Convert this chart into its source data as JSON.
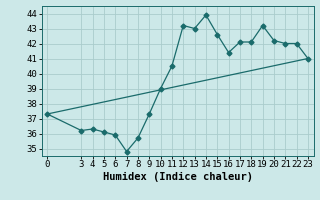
{
  "title": "",
  "xlabel": "Humidex (Indice chaleur)",
  "ylabel": "",
  "background_color": "#cce8e8",
  "line_color": "#1a6b6b",
  "grid_color": "#b8d8d8",
  "x_data": [
    0,
    3,
    4,
    5,
    6,
    7,
    8,
    9,
    10,
    11,
    12,
    13,
    14,
    15,
    16,
    17,
    18,
    19,
    20,
    21,
    22,
    23
  ],
  "y_data": [
    37.3,
    36.2,
    36.3,
    36.1,
    35.9,
    34.8,
    35.7,
    37.3,
    39.0,
    40.5,
    43.2,
    43.0,
    43.9,
    42.6,
    41.4,
    42.1,
    42.1,
    43.2,
    42.2,
    42.0,
    42.0,
    41.0
  ],
  "trend_x": [
    0,
    23
  ],
  "trend_y": [
    37.3,
    41.0
  ],
  "xlim": [
    -0.5,
    23.5
  ],
  "ylim": [
    34.5,
    44.5
  ],
  "yticks": [
    35,
    36,
    37,
    38,
    39,
    40,
    41,
    42,
    43,
    44
  ],
  "xticks": [
    0,
    3,
    4,
    5,
    6,
    7,
    8,
    9,
    10,
    11,
    12,
    13,
    14,
    15,
    16,
    17,
    18,
    19,
    20,
    21,
    22,
    23
  ],
  "tick_fontsize": 6.5,
  "label_fontsize": 7.5,
  "marker": "D",
  "markersize": 2.5
}
